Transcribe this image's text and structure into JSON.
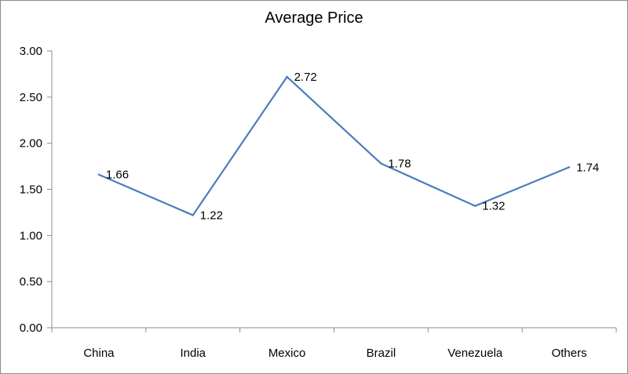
{
  "chart_data": {
    "type": "line",
    "title": "Average Price",
    "xlabel": "",
    "ylabel": "",
    "categories": [
      "China",
      "India",
      "Mexico",
      "Brazil",
      "Venezuela",
      "Others"
    ],
    "series": [
      {
        "values": [
          1.66,
          1.22,
          2.72,
          1.78,
          1.32,
          1.74
        ],
        "data_labels": [
          "1.66",
          "1.22",
          "2.72",
          "1.78",
          "1.32",
          "1.74"
        ],
        "color": "#4a7ebb"
      }
    ],
    "ylim": [
      0,
      3
    ],
    "y_ticks": [
      "0.00",
      "0.50",
      "1.00",
      "1.50",
      "2.00",
      "2.50",
      "3.00"
    ],
    "grid": false,
    "legend": "none"
  }
}
